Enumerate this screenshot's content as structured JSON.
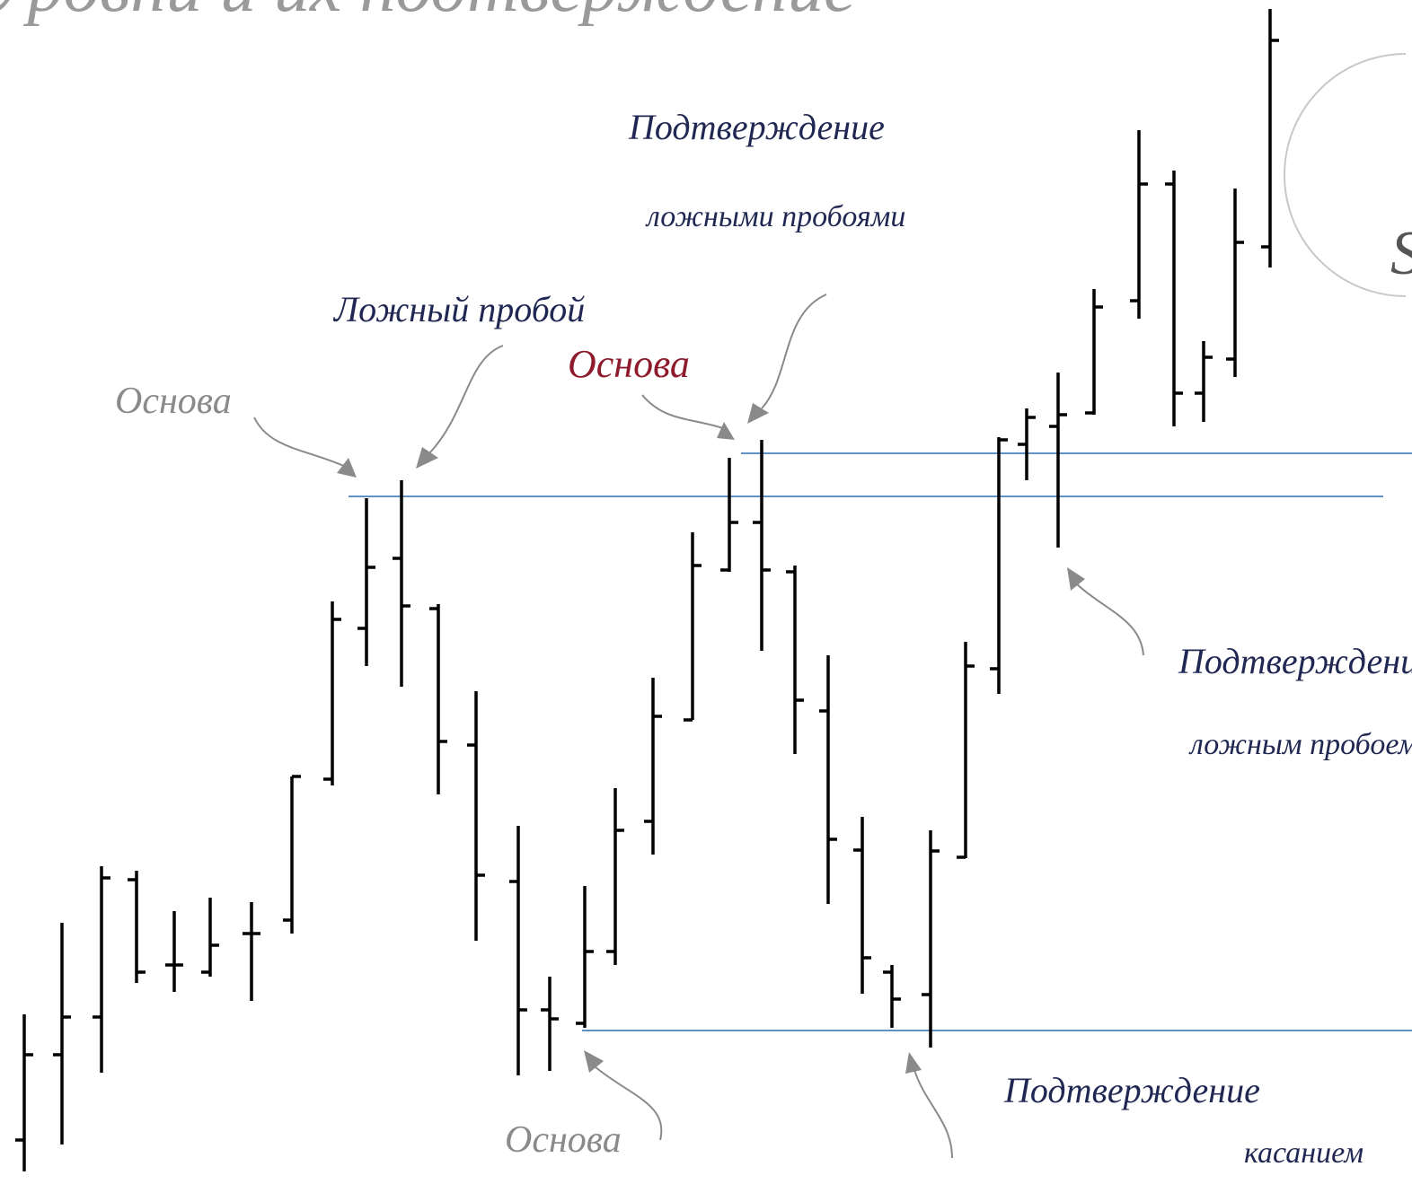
{
  "header": {
    "title": "Уровни и их подтверждение"
  },
  "logo": {
    "letter": "S"
  },
  "annotations": [
    {
      "text": "Подтверждение"
    },
    {
      "text": "ложными пробоями"
    },
    {
      "text": "Ложный пробой"
    },
    {
      "text": "Основа"
    },
    {
      "text": "Основа"
    },
    {
      "text": "Подтверждение"
    },
    {
      "text": "ложным пробоем"
    },
    {
      "text": "Основа"
    },
    {
      "text": "Подтверждение"
    },
    {
      "text": "касанием"
    }
  ]
}
